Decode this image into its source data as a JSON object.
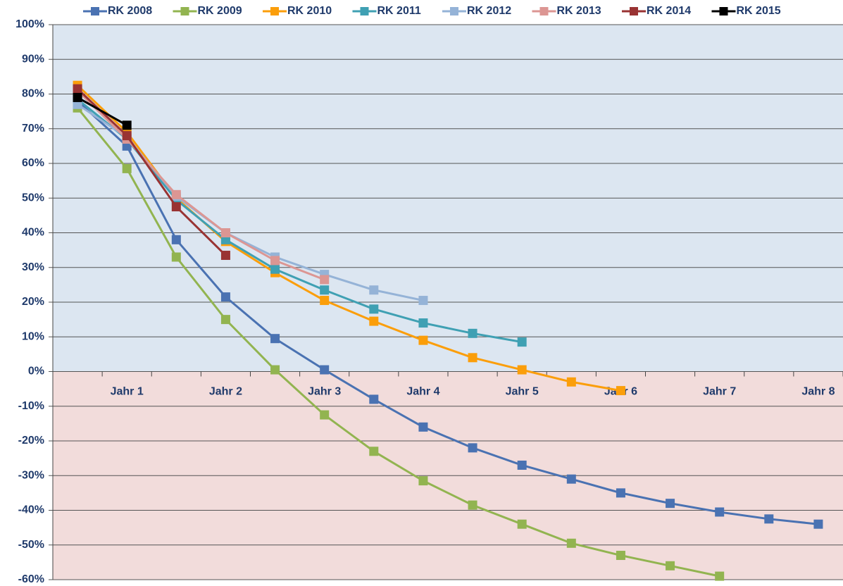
{
  "chart_data": {
    "type": "line",
    "categories": [
      null,
      "Jahr 1",
      null,
      "Jahr 2",
      null,
      "Jahr 3",
      null,
      "Jahr 4",
      null,
      "Jahr 5",
      null,
      "Jahr 6",
      null,
      "Jahr 7",
      null,
      "Jahr 8"
    ],
    "ylim": [
      -60,
      100
    ],
    "yticks": [
      {
        "value": -60,
        "label": "-60%"
      },
      {
        "value": -50,
        "label": "-50%"
      },
      {
        "value": -40,
        "label": "-40%"
      },
      {
        "value": -30,
        "label": "-30%"
      },
      {
        "value": -20,
        "label": "-20%"
      },
      {
        "value": -10,
        "label": "-10%"
      },
      {
        "value": 0,
        "label": "0%"
      },
      {
        "value": 10,
        "label": "10%"
      },
      {
        "value": 20,
        "label": "20%"
      },
      {
        "value": 30,
        "label": "30%"
      },
      {
        "value": 40,
        "label": "40%"
      },
      {
        "value": 50,
        "label": "50%"
      },
      {
        "value": 60,
        "label": "60%"
      },
      {
        "value": 70,
        "label": "70%"
      },
      {
        "value": 80,
        "label": "80%"
      },
      {
        "value": 90,
        "label": "90%"
      },
      {
        "value": 100,
        "label": "100%"
      }
    ],
    "grid": true,
    "legend": "top",
    "series": [
      {
        "name": "RK 2008",
        "color": "#4a72b2",
        "values": [
          78,
          65,
          38,
          21.5,
          9.5,
          0.5,
          -8,
          -16,
          -22,
          -27,
          -31,
          -35,
          -38,
          -40.5,
          -42.5,
          -44
        ]
      },
      {
        "name": "RK 2009",
        "color": "#92b450",
        "values": [
          76,
          58.5,
          33,
          15,
          0.5,
          -12.5,
          -23,
          -31.5,
          -38.5,
          -44,
          -49.5,
          -53,
          -56,
          -59,
          null,
          null
        ]
      },
      {
        "name": "RK 2010",
        "color": "#fb9e0a",
        "values": [
          82.5,
          69,
          50,
          37.5,
          28.5,
          20.5,
          14.5,
          9,
          4,
          0.5,
          -3,
          -5.5,
          null,
          null,
          null,
          null
        ]
      },
      {
        "name": "RK 2011",
        "color": "#3fa0b3",
        "values": [
          78.5,
          67,
          49.5,
          38,
          29.5,
          23.5,
          18,
          14,
          11,
          8.5,
          null,
          null,
          null,
          null,
          null,
          null
        ]
      },
      {
        "name": "RK 2012",
        "color": "#95b3d7",
        "values": [
          77,
          67.5,
          50.5,
          40,
          33,
          28,
          23.5,
          20.5,
          null,
          null,
          null,
          null,
          null,
          null,
          null,
          null
        ]
      },
      {
        "name": "RK 2013",
        "color": "#dc9693",
        "values": [
          81,
          67,
          51,
          40,
          32,
          26.5,
          null,
          null,
          null,
          null,
          null,
          null,
          null,
          null,
          null,
          null
        ]
      },
      {
        "name": "RK 2014",
        "color": "#993333",
        "values": [
          81.5,
          68,
          47.5,
          33.5,
          null,
          null,
          null,
          null,
          null,
          null,
          null,
          null,
          null,
          null,
          null,
          null
        ]
      },
      {
        "name": "RK 2015",
        "color": "#000000",
        "values": [
          79,
          71,
          null,
          null,
          null,
          null,
          null,
          null,
          null,
          null,
          null,
          null,
          null,
          null,
          null,
          null
        ]
      }
    ]
  }
}
